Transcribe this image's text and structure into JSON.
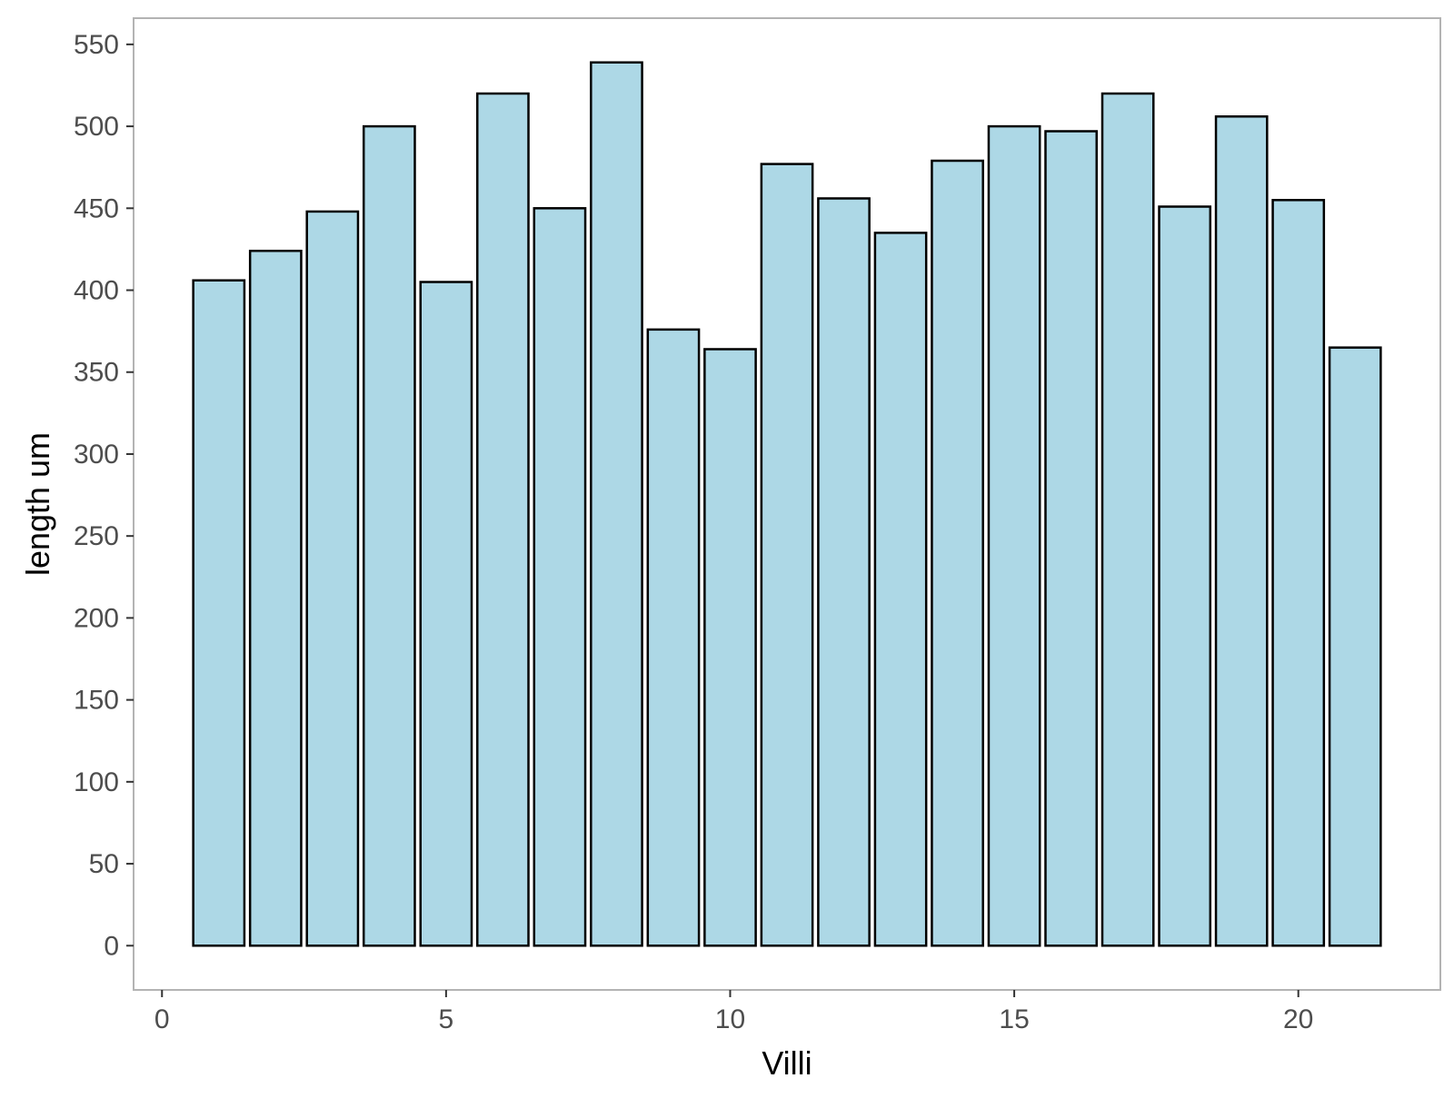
{
  "chart_data": {
    "type": "bar",
    "title": "",
    "xlabel": "Villi",
    "ylabel": "length um",
    "x": [
      1,
      2,
      3,
      4,
      5,
      6,
      7,
      8,
      9,
      10,
      11,
      12,
      13,
      14,
      15,
      16,
      17,
      18,
      19,
      20,
      21
    ],
    "values": [
      406,
      424,
      448,
      500,
      405,
      520,
      450,
      539,
      376,
      364,
      477,
      456,
      435,
      479,
      500,
      497,
      520,
      451,
      506,
      455,
      365
    ],
    "xlim": [
      -0.5,
      22.5
    ],
    "ylim": [
      -27,
      566
    ],
    "xticks": [
      0,
      5,
      10,
      15,
      20
    ],
    "yticks": [
      0,
      50,
      100,
      150,
      200,
      250,
      300,
      350,
      400,
      450,
      500,
      550
    ],
    "grid": false,
    "legend": "none",
    "colors": {
      "bar_fill": "#add8e6",
      "bar_stroke": "#000000",
      "panel_border": "#b3b3b3",
      "tick_text": "#4d4d4d"
    }
  }
}
